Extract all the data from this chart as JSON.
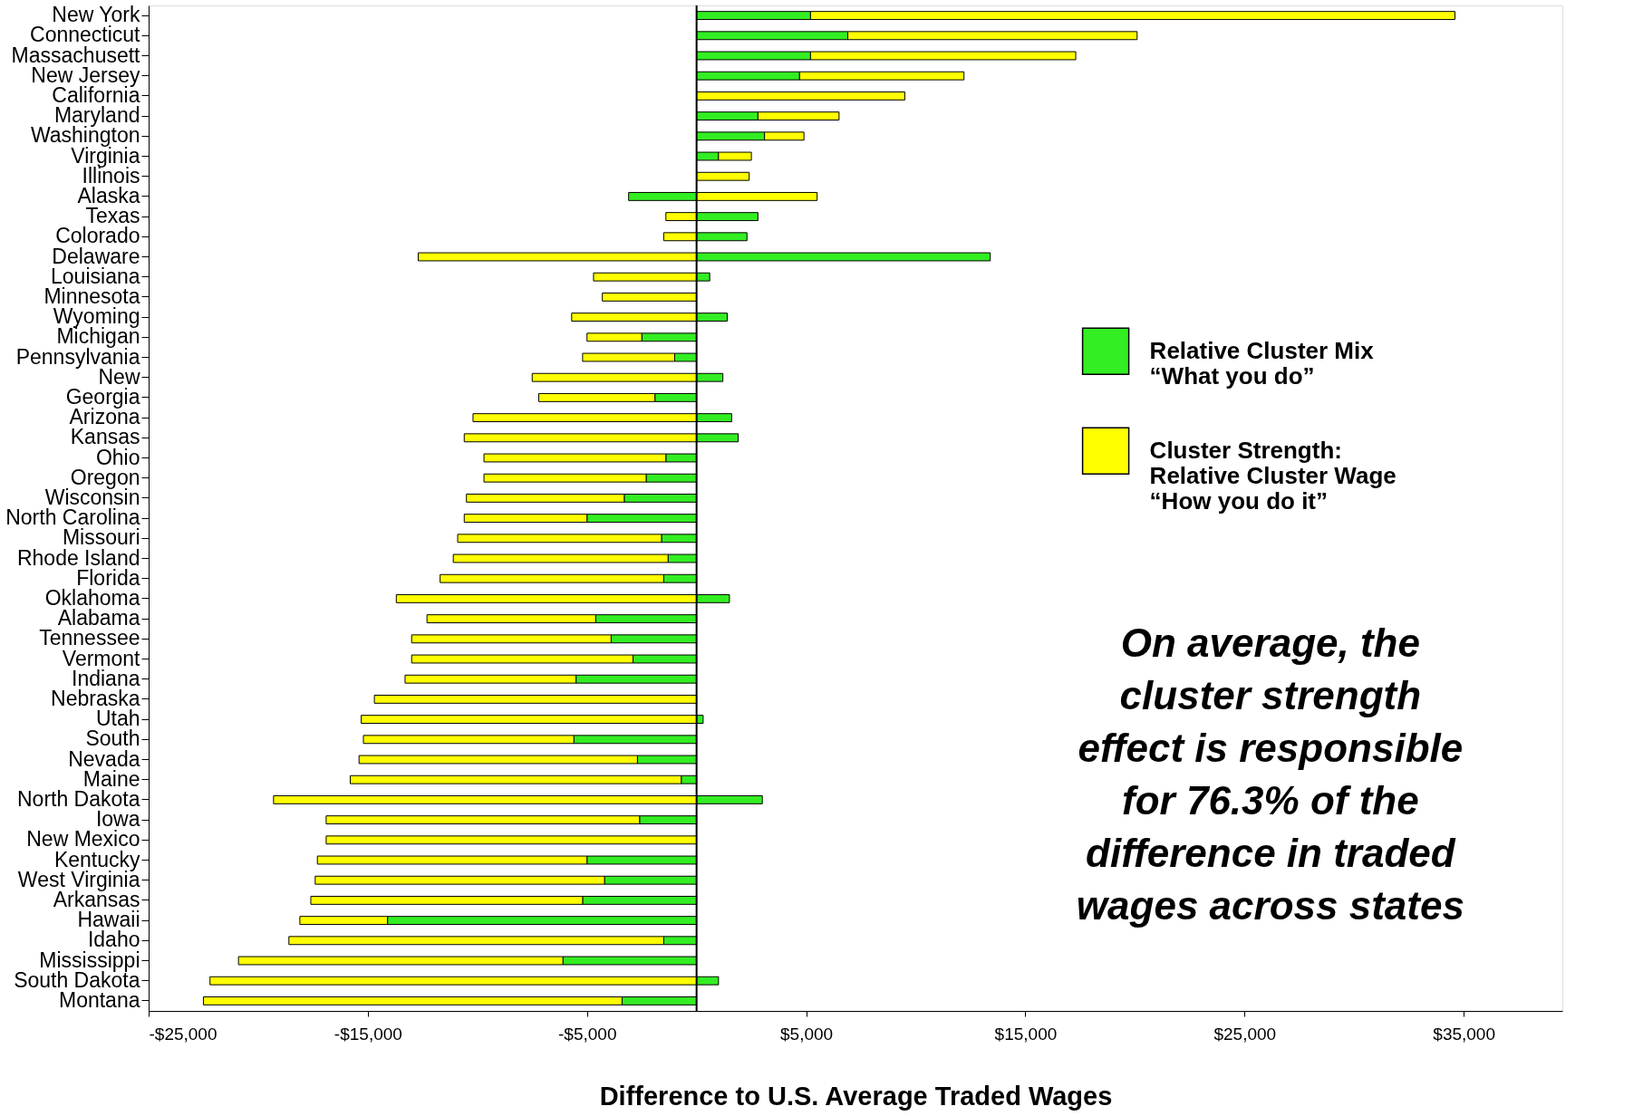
{
  "chart_data": {
    "type": "bar",
    "orientation": "horizontal",
    "stacked": true,
    "xlabel": "Difference to U.S. Average Traded Wages",
    "categories": [
      "New York",
      "Connecticut",
      "Massachusett",
      "New Jersey",
      "California",
      "Maryland",
      "Washington",
      "Virginia",
      "Illinois",
      "Alaska",
      "Texas",
      "Colorado",
      "Delaware",
      "Louisiana",
      "Minnesota",
      "Wyoming",
      "Michigan",
      "Pennsylvania",
      "New",
      "Georgia",
      "Arizona",
      "Kansas",
      "Ohio",
      "Oregon",
      "Wisconsin",
      "North Carolina",
      "Missouri",
      "Rhode Island",
      "Florida",
      "Oklahoma",
      "Alabama",
      "Tennessee",
      "Vermont",
      "Indiana",
      "Nebraska",
      "Utah",
      "South",
      "Nevada",
      "Maine",
      "North Dakota",
      "Iowa",
      "New Mexico",
      "Kentucky",
      "West Virginia",
      "Arkansas",
      "Hawaii",
      "Idaho",
      "Mississippi",
      "South Dakota",
      "Montana"
    ],
    "series": [
      {
        "name": "Relative Cluster Mix\n“What you do”",
        "color": "#33ee22",
        "values": [
          5200,
          6900,
          5200,
          4700,
          null,
          2800,
          3100,
          1000,
          null,
          -3100,
          2800,
          2300,
          13400,
          600,
          null,
          1400,
          -2500,
          -1000,
          1200,
          -1900,
          1600,
          1900,
          -1400,
          -2300,
          -3300,
          -5000,
          -1600,
          -1300,
          -1500,
          1500,
          -4600,
          -3900,
          -2900,
          -5500,
          null,
          300,
          -5600,
          -2700,
          -700,
          3000,
          -2600,
          null,
          -5000,
          -4200,
          -5200,
          -14100,
          -1500,
          -6100,
          1000,
          -3400
        ]
      },
      {
        "name": "Cluster Strength:\nRelative Cluster Wage\n“How you do it”",
        "color": "#ffff00",
        "values": [
          29400,
          13200,
          12100,
          7500,
          9500,
          3700,
          1800,
          1500,
          2400,
          5500,
          -1400,
          -1500,
          -12700,
          -4700,
          -4300,
          -5700,
          -2500,
          -4200,
          -7500,
          -5300,
          -10200,
          -10600,
          -8300,
          -7400,
          -7200,
          -5600,
          -9300,
          -9800,
          -10200,
          -13700,
          -7700,
          -9100,
          -10100,
          -7800,
          -14700,
          -15300,
          -9600,
          -12700,
          -15100,
          -19300,
          -14300,
          -16900,
          -12300,
          -13200,
          -12400,
          -4000,
          -17100,
          -14800,
          -22200,
          -19100
        ]
      }
    ],
    "xlim": [
      -25000,
      39500
    ],
    "xticks": [
      {
        "value": -25000,
        "label": "-$25,000"
      },
      {
        "value": -15000,
        "label": "-$15,000"
      },
      {
        "value": -5000,
        "label": "-$5,000"
      },
      {
        "value": 5000,
        "label": "$5,000"
      },
      {
        "value": 15000,
        "label": "$15,000"
      },
      {
        "value": 25000,
        "label": "$25,000"
      },
      {
        "value": 35000,
        "label": "$35,000"
      }
    ],
    "ref_lines": [
      {
        "axis": "x",
        "value": 0,
        "color": "#000000"
      }
    ],
    "annotations": [
      "On average, the\ncluster strength\neffect is responsible\nfor 76.3% of the\ndifference in traded\nwages across states"
    ],
    "legend": "right",
    "grid": false
  }
}
